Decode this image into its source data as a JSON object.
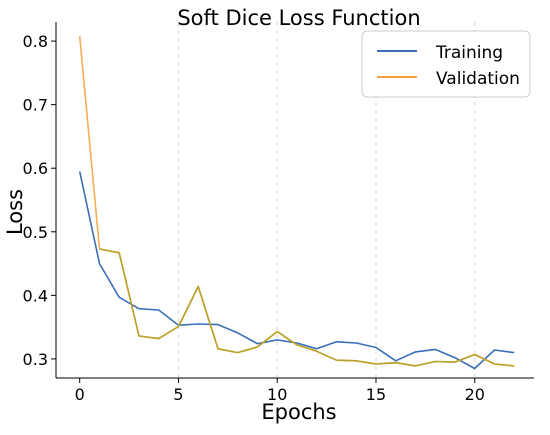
{
  "chart_data": {
    "type": "line",
    "title": "Soft Dice Loss Function",
    "xlabel": "Epochs",
    "ylabel": "Loss",
    "xlim": [
      -1.2,
      23.0
    ],
    "ylim": [
      0.27,
      0.83
    ],
    "xticks": [
      0,
      5,
      10,
      15,
      20
    ],
    "yticks": [
      0.3,
      0.4,
      0.5,
      0.6,
      0.7,
      0.8
    ],
    "grid": "vertical dashed",
    "legend_position": "top-right",
    "x": [
      0,
      1,
      2,
      3,
      4,
      5,
      6,
      7,
      8,
      9,
      10,
      11,
      12,
      13,
      14,
      15,
      16,
      17,
      18,
      19,
      20,
      21,
      22
    ],
    "series": [
      {
        "name": "Training",
        "color": "#3b6fba",
        "values": [
          0.595,
          0.45,
          0.397,
          0.379,
          0.377,
          0.353,
          0.355,
          0.354,
          0.341,
          0.324,
          0.33,
          0.325,
          0.316,
          0.327,
          0.325,
          0.318,
          0.297,
          0.311,
          0.315,
          0.302,
          0.285,
          0.314,
          0.31
        ]
      },
      {
        "name": "Validation",
        "color": "#f5a03a",
        "values": [
          0.808,
          0.473,
          0.467,
          0.336,
          0.332,
          0.351,
          0.414,
          0.316,
          0.31,
          0.319,
          0.343,
          0.322,
          0.312,
          0.298,
          0.297,
          0.292,
          0.294,
          0.289,
          0.296,
          0.295,
          0.307,
          0.292,
          0.289
        ]
      }
    ],
    "overlap_color": "#b8a22a"
  }
}
